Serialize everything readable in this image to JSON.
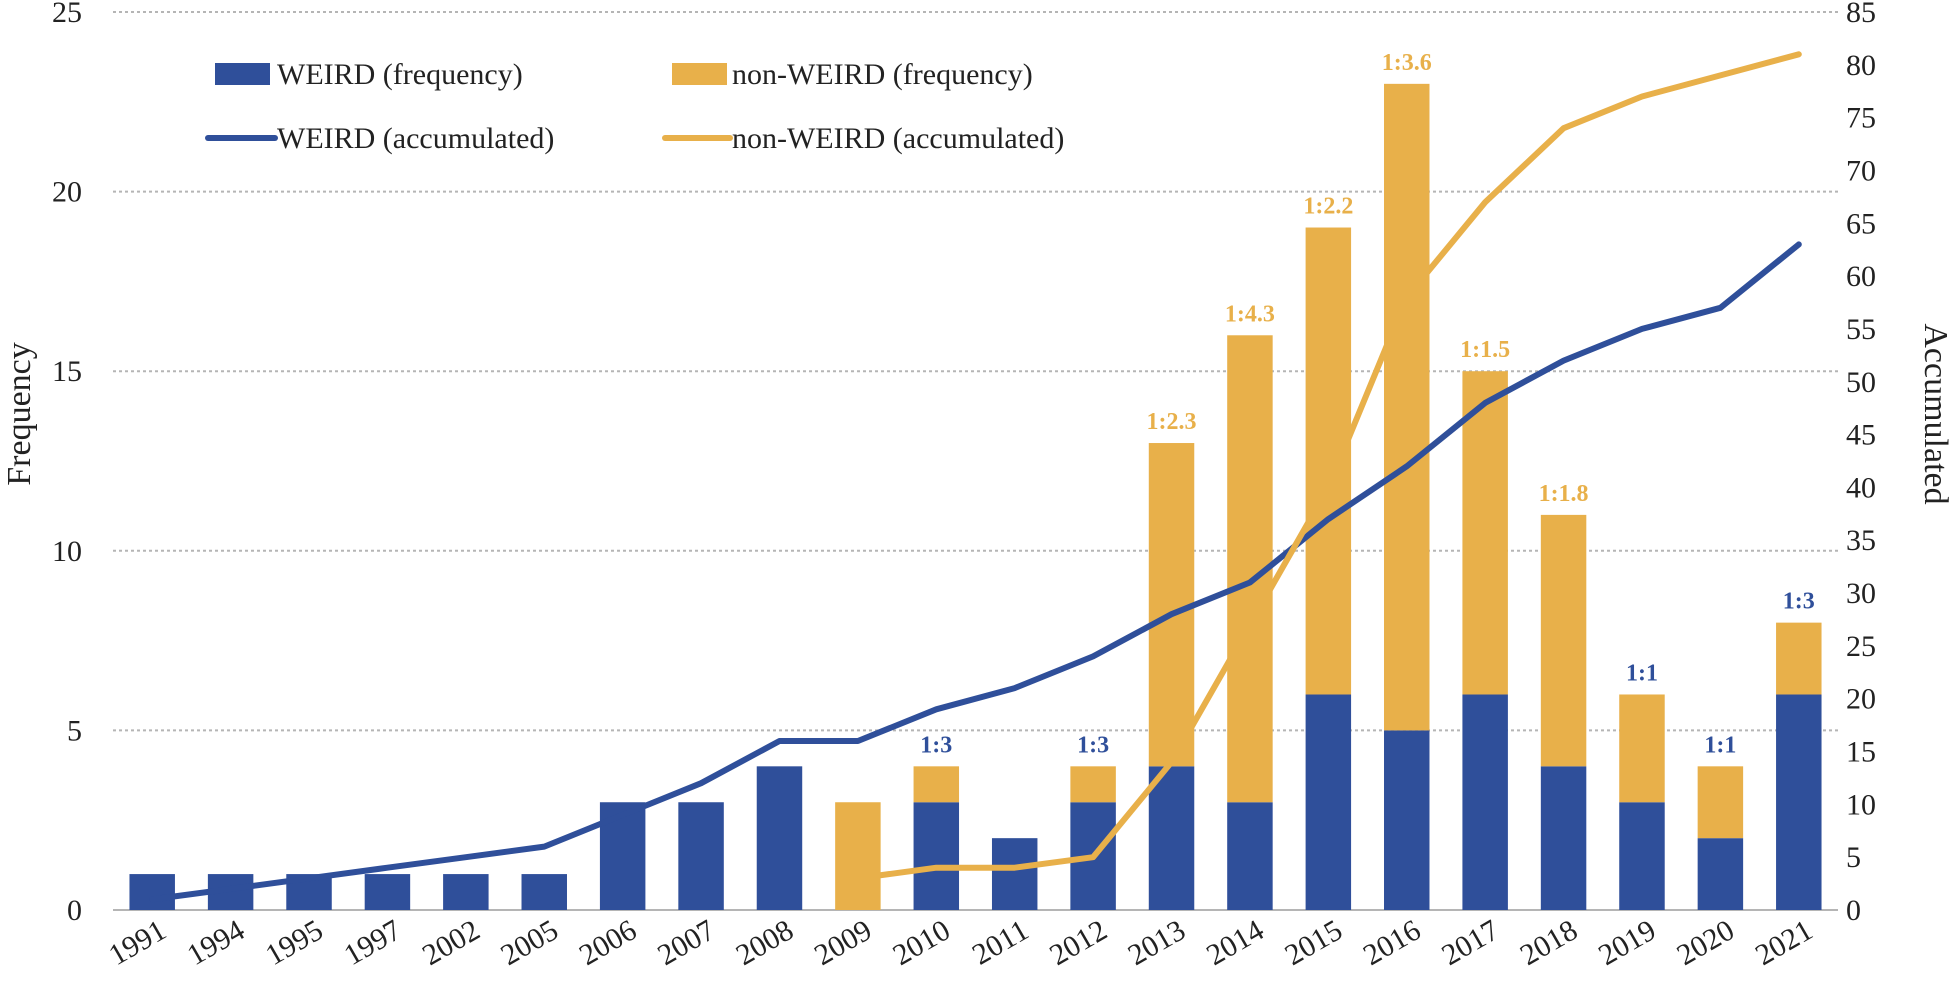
{
  "chart_data": {
    "type": "bar+line",
    "categories": [
      "1991",
      "1994",
      "1995",
      "1997",
      "2002",
      "2005",
      "2006",
      "2007",
      "2008",
      "2009",
      "2010",
      "2011",
      "2012",
      "2013",
      "2014",
      "2015",
      "2016",
      "2017",
      "2018",
      "2019",
      "2020",
      "2021"
    ],
    "series": [
      {
        "name": "WEIRD (frequency)",
        "kind": "bar",
        "axis": "left",
        "stack": "freq",
        "color": "#2f4f9a",
        "values": [
          1,
          1,
          1,
          1,
          1,
          1,
          3,
          3,
          4,
          0,
          3,
          2,
          3,
          4,
          3,
          6,
          5,
          6,
          4,
          3,
          2,
          6
        ]
      },
      {
        "name": "non-WEIRD (frequency)",
        "kind": "bar",
        "axis": "left",
        "stack": "freq",
        "color": "#e8b04a",
        "values": [
          0,
          0,
          0,
          0,
          0,
          0,
          0,
          0,
          0,
          3,
          1,
          0,
          1,
          9,
          13,
          13,
          18,
          9,
          7,
          3,
          2,
          2
        ]
      },
      {
        "name": "WEIRD (accumulated)",
        "kind": "line",
        "axis": "right",
        "color": "#2f4f9a",
        "values": [
          1,
          2,
          3,
          4,
          5,
          6,
          9,
          12,
          16,
          16,
          19,
          21,
          24,
          28,
          31,
          37,
          42,
          48,
          52,
          55,
          57,
          63
        ]
      },
      {
        "name": "non-WEIRD (accumulated)",
        "kind": "line",
        "axis": "right",
        "color": "#e8b04a",
        "values": [
          null,
          null,
          null,
          null,
          null,
          null,
          null,
          null,
          null,
          3,
          4,
          4,
          5,
          14,
          27,
          40,
          58,
          67,
          74,
          77,
          79,
          81
        ]
      }
    ],
    "ratio_labels": [
      {
        "category": "2010",
        "text": "1:3",
        "color": "#2f4f9a"
      },
      {
        "category": "2012",
        "text": "1:3",
        "color": "#2f4f9a"
      },
      {
        "category": "2013",
        "text": "1:2.3",
        "color": "#e8b04a"
      },
      {
        "category": "2014",
        "text": "1:4.3",
        "color": "#e8b04a"
      },
      {
        "category": "2015",
        "text": "1:2.2",
        "color": "#e8b04a"
      },
      {
        "category": "2016",
        "text": "1:3.6",
        "color": "#e8b04a"
      },
      {
        "category": "2017",
        "text": "1:1.5",
        "color": "#e8b04a"
      },
      {
        "category": "2018",
        "text": "1:1.8",
        "color": "#e8b04a"
      },
      {
        "category": "2019",
        "text": "1:1",
        "color": "#2f4f9a"
      },
      {
        "category": "2020",
        "text": "1:1",
        "color": "#2f4f9a"
      },
      {
        "category": "2021",
        "text": "1:3",
        "color": "#2f4f9a"
      }
    ],
    "ylabel": "Frequency",
    "y2label": "Accumulated",
    "ylim": [
      0,
      25
    ],
    "yticks": [
      0,
      5,
      10,
      15,
      20,
      25
    ],
    "y2lim": [
      0,
      85
    ],
    "y2ticks": [
      0,
      5,
      10,
      15,
      20,
      25,
      30,
      35,
      40,
      45,
      50,
      55,
      60,
      65,
      70,
      75,
      80,
      85
    ],
    "grid": "horizontal dotted",
    "legend_position": "top-left"
  },
  "legend": {
    "weird_freq": "WEIRD (frequency)",
    "nonweird_freq": "non-WEIRD (frequency)",
    "weird_acc": "WEIRD (accumulated)",
    "nonweird_acc": "non-WEIRD (accumulated)"
  },
  "axes": {
    "left_title": "Frequency",
    "right_title": "Accumulated"
  }
}
